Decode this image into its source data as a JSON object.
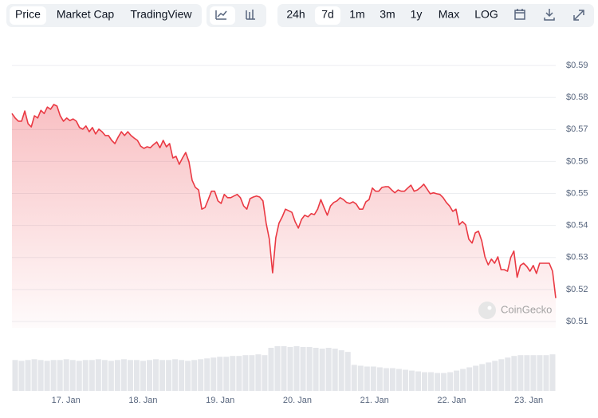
{
  "toolbar": {
    "tabs": [
      "Price",
      "Market Cap",
      "TradingView"
    ],
    "selected_tab": 0,
    "ranges": [
      "24h",
      "7d",
      "1m",
      "3m",
      "1y",
      "Max",
      "LOG"
    ],
    "selected_range": 1
  },
  "watermark": "CoinGecko",
  "chart_data": {
    "type": "line",
    "xlim": [
      16.3,
      23.35
    ],
    "xticks": [
      {
        "value": 17,
        "label": "17. Jan"
      },
      {
        "value": 18,
        "label": "18. Jan"
      },
      {
        "value": 19,
        "label": "19. Jan"
      },
      {
        "value": 20,
        "label": "20. Jan"
      },
      {
        "value": 21,
        "label": "21. Jan"
      },
      {
        "value": 22,
        "label": "22. Jan"
      },
      {
        "value": 23,
        "label": "23. Jan"
      }
    ],
    "ylim": [
      0.508,
      0.599
    ],
    "yticks": [
      {
        "value": 0.51,
        "label": "$0.51"
      },
      {
        "value": 0.52,
        "label": "$0.52"
      },
      {
        "value": 0.53,
        "label": "$0.53"
      },
      {
        "value": 0.54,
        "label": "$0.54"
      },
      {
        "value": 0.55,
        "label": "$0.55"
      },
      {
        "value": 0.56,
        "label": "$0.56"
      },
      {
        "value": 0.57,
        "label": "$0.57"
      },
      {
        "value": 0.58,
        "label": "$0.58"
      },
      {
        "value": 0.59,
        "label": "$0.59"
      }
    ],
    "grid": true,
    "color": "#ea3943",
    "values": [
      0.575,
      0.5736,
      0.5726,
      0.5726,
      0.5758,
      0.5718,
      0.5708,
      0.5743,
      0.5736,
      0.576,
      0.575,
      0.577,
      0.5763,
      0.5778,
      0.5773,
      0.5743,
      0.5726,
      0.5736,
      0.5728,
      0.5733,
      0.5726,
      0.5706,
      0.5701,
      0.5711,
      0.5693,
      0.5706,
      0.5686,
      0.5701,
      0.5693,
      0.5681,
      0.5681,
      0.5666,
      0.5656,
      0.5676,
      0.5693,
      0.5681,
      0.5693,
      0.5681,
      0.5673,
      0.5666,
      0.5648,
      0.5641,
      0.5646,
      0.5643,
      0.5653,
      0.5661,
      0.5643,
      0.5666,
      0.5646,
      0.5656,
      0.5611,
      0.5616,
      0.5591,
      0.5611,
      0.5628,
      0.5599,
      0.5541,
      0.5519,
      0.5511,
      0.5451,
      0.5456,
      0.5481,
      0.5507,
      0.5507,
      0.5477,
      0.5469,
      0.5497,
      0.5487,
      0.5487,
      0.5492,
      0.5497,
      0.5487,
      0.5461,
      0.5451,
      0.5484,
      0.5489,
      0.5492,
      0.5489,
      0.5477,
      0.5407,
      0.5357,
      0.5252,
      0.5362,
      0.5407,
      0.5427,
      0.5451,
      0.5446,
      0.5441,
      0.5412,
      0.5392,
      0.5419,
      0.5432,
      0.5427,
      0.5437,
      0.5434,
      0.5451,
      0.5481,
      0.5456,
      0.5432,
      0.5461,
      0.5472,
      0.5477,
      0.5487,
      0.5481,
      0.5472,
      0.5469,
      0.5474,
      0.5467,
      0.5451,
      0.5451,
      0.5474,
      0.5481,
      0.5517,
      0.5507,
      0.5507,
      0.5519,
      0.5521,
      0.5521,
      0.5511,
      0.5502,
      0.5511,
      0.5507,
      0.5507,
      0.5517,
      0.5526,
      0.5507,
      0.5511,
      0.5519,
      0.5529,
      0.5514,
      0.5499,
      0.5502,
      0.5499,
      0.5497,
      0.5487,
      0.5472,
      0.5461,
      0.5444,
      0.5451,
      0.5402,
      0.5412,
      0.5402,
      0.5357,
      0.5345,
      0.5377,
      0.5382,
      0.5352,
      0.5302,
      0.5277,
      0.5295,
      0.5282,
      0.5302,
      0.5262,
      0.5262,
      0.5257,
      0.53,
      0.532,
      0.5238,
      0.5275,
      0.5282,
      0.5272,
      0.5257,
      0.5275,
      0.525,
      0.5282,
      0.5282,
      0.5282,
      0.5282,
      0.5257,
      0.5173
    ],
    "volume_color": "#e4e6ea",
    "volume_values": [
      38,
      37,
      38,
      39,
      38,
      37,
      38,
      38,
      39,
      38,
      37,
      38,
      38,
      39,
      38,
      37,
      38,
      39,
      38,
      38,
      37,
      38,
      39,
      38,
      38,
      39,
      38,
      37,
      38,
      39,
      40,
      41,
      42,
      42,
      43,
      43,
      44,
      44,
      45,
      44,
      53,
      55,
      55,
      54,
      55,
      54,
      54,
      53,
      52,
      53,
      52,
      50,
      48,
      32,
      31,
      30,
      30,
      29,
      28,
      28,
      27,
      26,
      25,
      24,
      23,
      23,
      22,
      22,
      23,
      25,
      27,
      29,
      31,
      33,
      35,
      37,
      39,
      41,
      43,
      44,
      44,
      44,
      44,
      44,
      45
    ]
  }
}
